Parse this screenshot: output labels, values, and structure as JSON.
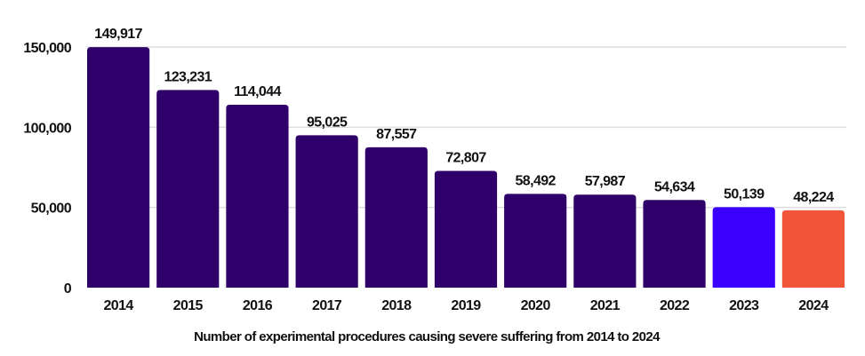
{
  "chart_data": {
    "type": "bar",
    "title": "",
    "xlabel": "Number of experimental procedures causing severe suffering from 2014 to 2024",
    "ylabel": "",
    "categories": [
      "2014",
      "2015",
      "2016",
      "2017",
      "2018",
      "2019",
      "2020",
      "2021",
      "2022",
      "2023",
      "2024"
    ],
    "values": [
      149917,
      123231,
      114044,
      95025,
      87557,
      72807,
      58492,
      57987,
      54634,
      50139,
      48224
    ],
    "data_labels": [
      "149,917",
      "123,231",
      "114,044",
      "95,025",
      "87,557",
      "72,807",
      "58,492",
      "57,987",
      "54,634",
      "50,139",
      "48,224"
    ],
    "bar_colors": [
      "#30006a",
      "#30006a",
      "#30006a",
      "#30006a",
      "#30006a",
      "#30006a",
      "#30006a",
      "#30006a",
      "#30006a",
      "#3a00ff",
      "#f0553a"
    ],
    "ylim": [
      0,
      160000
    ],
    "yticks": [
      0,
      50000,
      100000,
      150000
    ],
    "ytick_labels": [
      "0",
      "50,000",
      "100,000",
      "150,000"
    ],
    "grid": true,
    "grid_color": "#dddddd"
  }
}
